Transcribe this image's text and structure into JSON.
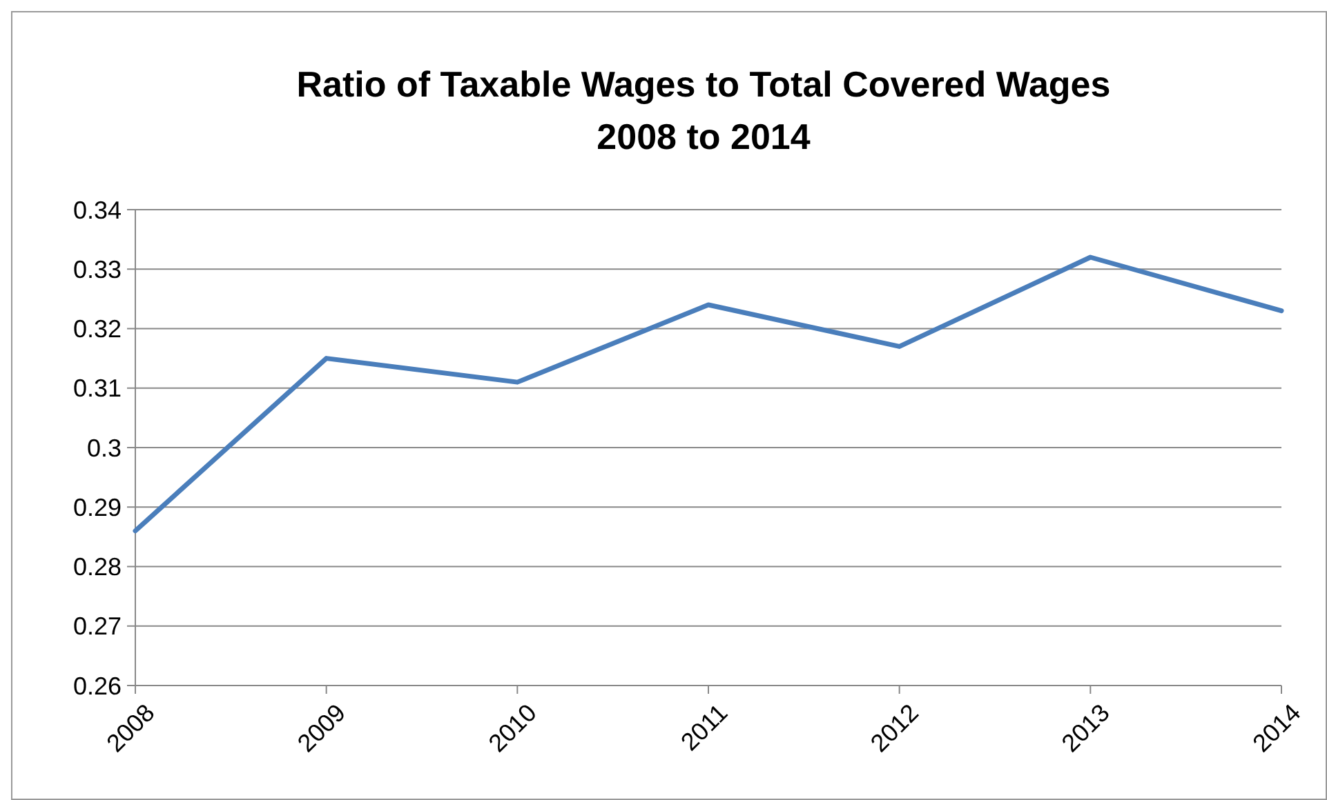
{
  "chart_data": {
    "type": "line",
    "title": "Ratio of Taxable Wages to Total Covered Wages\n2008 to 2014",
    "categories": [
      "2008",
      "2009",
      "2010",
      "2011",
      "2012",
      "2013",
      "2014"
    ],
    "series": [
      {
        "color": "#4a7ebb",
        "values": [
          0.286,
          0.315,
          0.311,
          0.324,
          0.317,
          0.332,
          0.323
        ]
      }
    ],
    "ylim": [
      0.26,
      0.34
    ],
    "yticks": [
      0.26,
      0.27,
      0.28,
      0.29,
      0.3,
      0.31,
      0.32,
      0.33,
      0.34
    ],
    "grid": "y",
    "marker": "none",
    "line_style": "solid"
  }
}
